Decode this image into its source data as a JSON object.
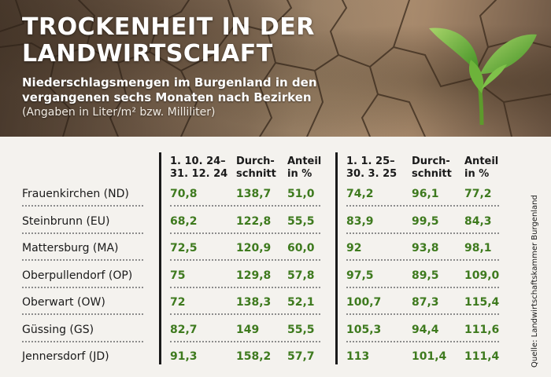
{
  "header": {
    "title_line1": "TROCKENHEIT IN DER",
    "title_line2": "LANDWIRTSCHAFT",
    "subtitle_line1": "Niederschlagsmengen im Burgenland in den",
    "subtitle_line2": "vergangenen sechs Monaten nach Bezirken",
    "unit_note": "(Angaben in Liter/m² bzw. Milliliter)",
    "image_icon": "seedling-on-cracked-soil-icon"
  },
  "colors": {
    "value_green": "#3e7a1e",
    "text_dark": "#1a1a1a",
    "background": "#f4f2ee"
  },
  "chart_data": {
    "type": "table",
    "title": "TROCKENHEIT IN DER LANDWIRTSCHAFT",
    "subtitle": "Niederschlagsmengen im Burgenland in den vergangenen sechs Monaten nach Bezirken",
    "columns": [
      {
        "line1": "1. 10. 24–",
        "line2": "31. 12. 24"
      },
      {
        "line1": "Durch-",
        "line2": "schnitt"
      },
      {
        "line1": "Anteil",
        "line2": "in %"
      },
      {
        "line1": "1. 1. 25–",
        "line2": "30. 3. 25"
      },
      {
        "line1": "Durch-",
        "line2": "schnitt"
      },
      {
        "line1": "Anteil",
        "line2": "in %"
      }
    ],
    "rows": [
      {
        "district": "Frauenkirchen (ND)",
        "values": [
          "70,8",
          "138,7",
          "51,0",
          "74,2",
          "96,1",
          "77,2"
        ]
      },
      {
        "district": "Steinbrunn (EU)",
        "values": [
          "68,2",
          "122,8",
          "55,5",
          "83,9",
          "99,5",
          "84,3"
        ]
      },
      {
        "district": "Mattersburg (MA)",
        "values": [
          "72,5",
          "120,9",
          "60,0",
          "92",
          "93,8",
          "98,1"
        ]
      },
      {
        "district": "Oberpullendorf (OP)",
        "values": [
          "75",
          "129,8",
          "57,8",
          "97,5",
          "89,5",
          "109,0"
        ]
      },
      {
        "district": "Oberwart (OW)",
        "values": [
          "72",
          "138,3",
          "52,1",
          "100,7",
          "87,3",
          "115,4"
        ]
      },
      {
        "district": "Güssing (GS)",
        "values": [
          "82,7",
          "149",
          "55,5",
          "105,3",
          "94,4",
          "111,6"
        ]
      },
      {
        "district": "Jennersdorf (JD)",
        "values": [
          "91,3",
          "158,2",
          "57,7",
          "113",
          "101,4",
          "111,4"
        ]
      }
    ]
  },
  "source": "Quelle: Landwirtschaftskammer Burgenland"
}
